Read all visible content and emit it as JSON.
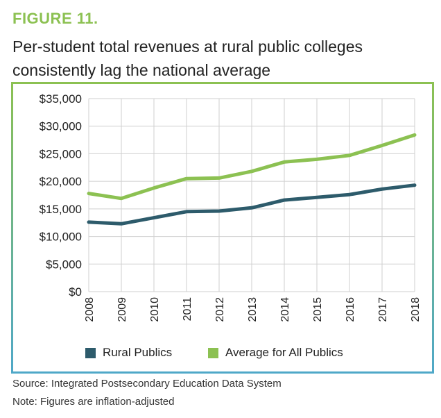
{
  "figure_label": "FIGURE 11.",
  "title": "Per-student total revenues at rural public colleges consistently lag the national average",
  "source": "Source: Integrated Postsecondary Education Data System",
  "note": "Note: Figures are inflation-adjusted",
  "colors": {
    "label": "#8cc152",
    "rural": "#2d5b6b",
    "average": "#8cc152",
    "frame_top": "#8cc152",
    "frame_bottom": "#4fa8c8",
    "grid": "#cfcfcf"
  },
  "chart_data": {
    "type": "line",
    "x": [
      "2008",
      "2009",
      "2010",
      "2011",
      "2012",
      "2013",
      "2014",
      "2015",
      "2016",
      "2017",
      "2018"
    ],
    "series": [
      {
        "name": "Rural Publics",
        "values": [
          12600,
          12300,
          13400,
          14500,
          14600,
          15200,
          16600,
          17100,
          17600,
          18600,
          19300
        ]
      },
      {
        "name": "Average for All Publics",
        "values": [
          17800,
          16900,
          18800,
          20500,
          20600,
          21800,
          23500,
          24000,
          24700,
          26500,
          28400
        ]
      }
    ],
    "y_ticks": [
      "$35,000",
      "$30,000",
      "$25,000",
      "$20,000",
      "$15,000",
      "$10,000",
      "$5,000",
      "$0"
    ],
    "ylim": [
      0,
      35000
    ],
    "grid": true,
    "legend_position": "bottom"
  }
}
